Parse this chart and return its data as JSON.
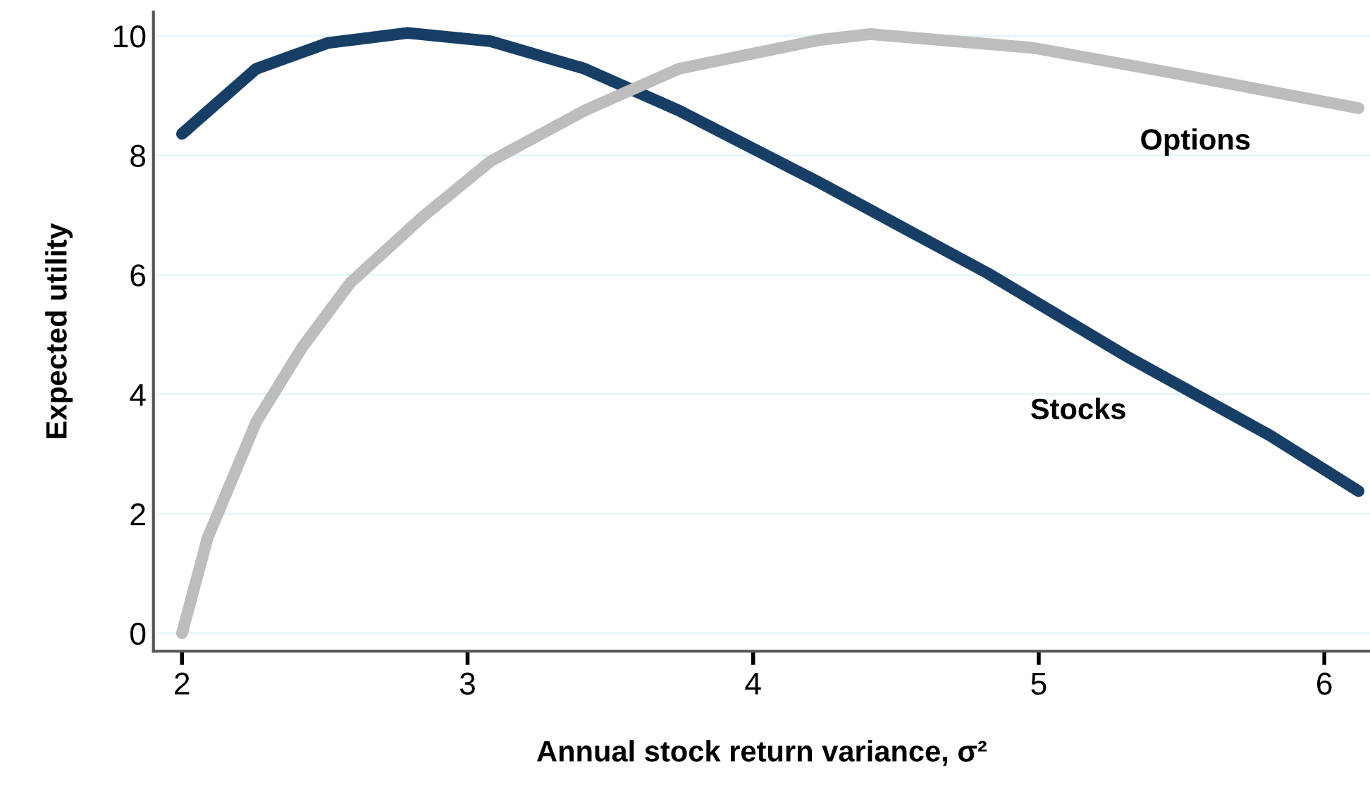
{
  "chart_data": {
    "type": "line",
    "xlabel": "Annual stock return variance, σ²",
    "ylabel": "Expected utility",
    "xlim": [
      1.9,
      6.16
    ],
    "xticks": [
      2,
      3,
      4,
      5,
      6
    ],
    "ylim": [
      -0.3,
      10.4
    ],
    "yticks": [
      0,
      2,
      4,
      6,
      8,
      10
    ],
    "grid": "y",
    "legend": false,
    "marker": "none",
    "line_style": "solid",
    "series": [
      {
        "name": "Stocks",
        "color": "#173f66",
        "x": [
          2.0,
          2.26,
          2.51,
          2.79,
          3.08,
          3.41,
          3.74,
          4.23,
          4.82,
          5.31,
          5.81,
          6.12
        ],
        "values": [
          8.36,
          9.45,
          9.88,
          10.05,
          9.91,
          9.45,
          8.75,
          7.55,
          6.03,
          4.63,
          3.31,
          2.38
        ]
      },
      {
        "name": "Options",
        "color": "#bdbdbd",
        "x": [
          2.0,
          2.09,
          2.26,
          2.42,
          2.59,
          2.84,
          3.08,
          3.41,
          3.74,
          4.23,
          4.41,
          4.98,
          5.48,
          6.12
        ],
        "values": [
          0.0,
          1.6,
          3.54,
          4.78,
          5.87,
          6.96,
          7.9,
          8.75,
          9.45,
          9.93,
          10.03,
          9.8,
          9.37,
          8.79
        ]
      }
    ]
  }
}
